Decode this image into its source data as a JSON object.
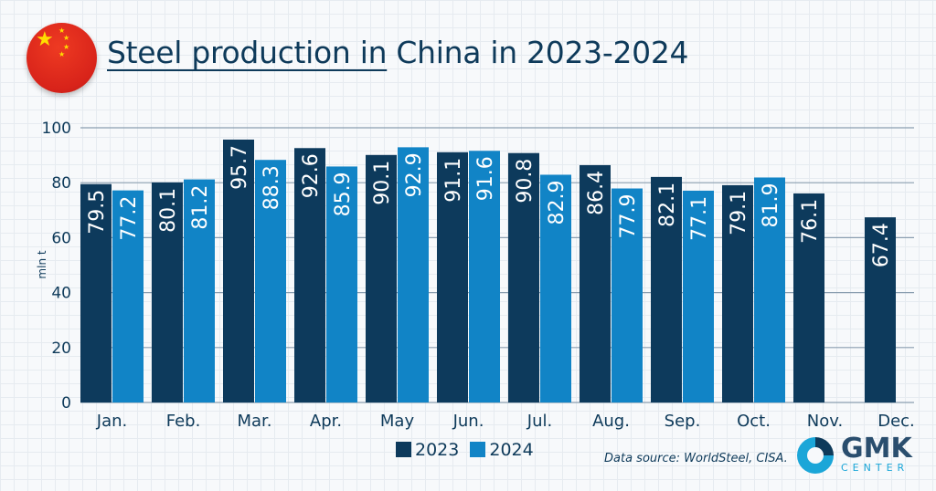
{
  "title": {
    "underlined": "Steel production in",
    "rest": " China in 2023-2024"
  },
  "colors": {
    "2023": "#0d3a5c",
    "2024": "#1184c6",
    "axis_text": "#0e3a5a"
  },
  "footer": {
    "source": "Data source: WorldSteel, CISA.",
    "logo_main": "GMK",
    "logo_sub": "CENTER"
  },
  "chart_data": {
    "type": "bar",
    "title": "Steel production in China in 2023-2024",
    "ylabel": "mln t",
    "ylim": [
      0,
      100
    ],
    "yticks": [
      0,
      20,
      40,
      60,
      80,
      100
    ],
    "grid": true,
    "legend": "bottom",
    "categories": [
      "Jan.",
      "Feb.",
      "Mar.",
      "Apr.",
      "May",
      "Jun.",
      "Jul.",
      "Aug.",
      "Sep.",
      "Oct.",
      "Nov.",
      "Dec."
    ],
    "series": [
      {
        "name": "2023",
        "values": [
          79.5,
          80.1,
          95.7,
          92.6,
          90.1,
          91.1,
          90.8,
          86.4,
          82.1,
          79.1,
          76.1,
          67.4
        ]
      },
      {
        "name": "2024",
        "values": [
          77.2,
          81.2,
          88.3,
          85.9,
          92.9,
          91.6,
          82.9,
          77.9,
          77.1,
          81.9,
          null,
          null
        ]
      }
    ]
  }
}
